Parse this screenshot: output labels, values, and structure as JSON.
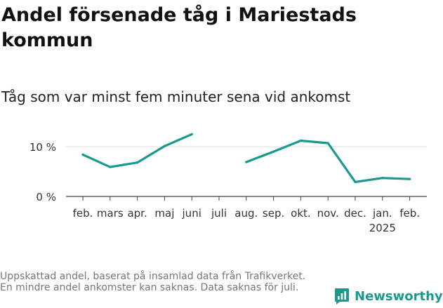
{
  "title": "Andel försenade tåg i Mariestads kommun",
  "subtitle": "Tåg som var minst fem minuter sena vid ankomst",
  "footnote": "Uppskattad andel, baserat på insamlad data från Trafikverket. En mindre andel ankomster kan saknas. Data saknas för juli.",
  "brand": {
    "name": "Newsworthy",
    "icon": "bar-chart-logo-icon",
    "color": "#1a9a8e"
  },
  "chart_data": {
    "type": "line",
    "categories": [
      "feb.",
      "mars",
      "apr.",
      "maj",
      "juni",
      "juli",
      "aug.",
      "sep.",
      "okt.",
      "nov.",
      "dec.",
      "jan.",
      "feb."
    ],
    "year_label": "2025",
    "year_label_under": "jan.",
    "values": [
      8.4,
      5.9,
      6.8,
      10.1,
      12.5,
      null,
      6.9,
      9.0,
      11.2,
      10.7,
      2.9,
      3.7,
      3.5
    ],
    "ylim": [
      0,
      14
    ],
    "yticks": [
      0,
      10
    ],
    "ytick_labels": [
      "0 %",
      "10 %"
    ],
    "xlabel": "",
    "ylabel": "",
    "grid": true,
    "line_color": "#1a9a8e"
  }
}
